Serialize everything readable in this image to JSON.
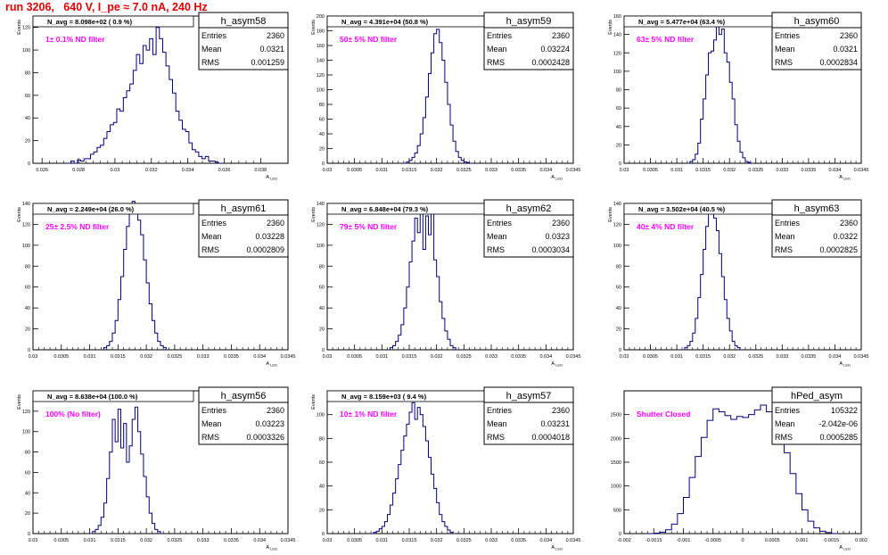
{
  "title": "run 3206,   640 V, I_pe ≈ 7.0 nA, 240 Hz",
  "colors": {
    "title": "#e00000",
    "histogram": "#00007a",
    "filter_label": "#ff00ff",
    "axes": "#000000",
    "background": "#ffffff"
  },
  "chart_data": [
    {
      "type": "bar",
      "name": "h_asym58",
      "stats": {
        "entries_label": "Entries",
        "entries": "2360",
        "mean_label": "Mean",
        "mean": "0.0321",
        "rms_label": "RMS",
        "rms": "0.001259"
      },
      "navg_label": "N_avg = 8.098e+02 ( 0.9 %)",
      "filter_label": "1± 0.1% ND filter",
      "xlabel": "A_LED",
      "ylabel": "Events",
      "xlim": [
        0.0255,
        0.0395
      ],
      "ylim": [
        0,
        130
      ],
      "xticks": [
        0.026,
        0.028,
        0.03,
        0.032,
        0.034,
        0.036,
        0.038
      ],
      "xtick_labels": [
        "0.026",
        "0.028",
        "0.03",
        "0.032",
        "0.034",
        "0.036",
        "0.038"
      ],
      "yticks": [
        0,
        20,
        40,
        60,
        80,
        100,
        120
      ],
      "ytick_labels": [
        "0",
        "20",
        "40",
        "60",
        "80",
        "100",
        "120"
      ],
      "bins": {
        "start": 0.0274,
        "width": 0.00018,
        "counts": [
          0,
          2,
          0,
          3,
          2,
          4,
          4,
          8,
          10,
          14,
          16,
          22,
          28,
          34,
          36,
          48,
          46,
          58,
          64,
          70,
          82,
          96,
          88,
          104,
          100,
          110,
          96,
          120,
          110,
          98,
          86,
          74,
          62,
          46,
          38,
          30,
          28,
          18,
          12,
          10,
          6,
          4,
          6,
          2,
          2,
          1,
          0
        ]
      }
    },
    {
      "type": "bar",
      "name": "h_asym59",
      "stats": {
        "entries_label": "Entries",
        "entries": "2360",
        "mean_label": "Mean",
        "mean": "0.03224",
        "rms_label": "RMS",
        "rms": "0.0002428"
      },
      "navg_label": "N_avg = 4.391e+04 (50.8 %)",
      "filter_label": "50± 5% ND filter",
      "xlabel": "A_LED",
      "ylabel": "Events",
      "xlim": [
        0.03,
        0.0345
      ],
      "ylim": [
        0,
        200
      ],
      "xticks": [
        0.03,
        0.0305,
        0.031,
        0.0315,
        0.032,
        0.0325,
        0.033,
        0.0335,
        0.034,
        0.0345
      ],
      "xtick_labels": [
        "0.03",
        "0.0305",
        "0.031",
        "0.0315",
        "0.032",
        "0.0325",
        "0.033",
        "0.0335",
        "0.034",
        "0.0345"
      ],
      "yticks": [
        0,
        20,
        40,
        60,
        80,
        100,
        120,
        140,
        160,
        180,
        200
      ],
      "ytick_labels": [
        "0",
        "20",
        "40",
        "60",
        "80",
        "100",
        "120",
        "140",
        "160",
        "180",
        "200"
      ],
      "bins": {
        "start": 0.0314,
        "width": 5e-05,
        "counts": [
          0,
          2,
          4,
          8,
          14,
          24,
          40,
          62,
          90,
          122,
          150,
          176,
          182,
          164,
          140,
          110,
          80,
          52,
          30,
          16,
          8,
          4,
          2,
          1,
          0
        ]
      }
    },
    {
      "type": "bar",
      "name": "h_asym60",
      "stats": {
        "entries_label": "Entries",
        "entries": "2360",
        "mean_label": "Mean",
        "mean": "0.0321",
        "rms_label": "RMS",
        "rms": "0.0002834"
      },
      "navg_label": "N_avg = 5.477e+04 (63.4 %)",
      "filter_label": "63± 5% ND filter",
      "xlabel": "A_LED",
      "ylabel": "Events",
      "xlim": [
        0.03,
        0.0345
      ],
      "ylim": [
        0,
        160
      ],
      "xticks": [
        0.03,
        0.0305,
        0.031,
        0.0315,
        0.032,
        0.0325,
        0.033,
        0.0335,
        0.034,
        0.0345
      ],
      "xtick_labels": [
        "0.03",
        "0.0305",
        "0.031",
        "0.0315",
        "0.032",
        "0.0325",
        "0.033",
        "0.0335",
        "0.034",
        "0.0345"
      ],
      "yticks": [
        0,
        20,
        40,
        60,
        80,
        100,
        120,
        140,
        160
      ],
      "ytick_labels": [
        "0",
        "20",
        "40",
        "60",
        "80",
        "100",
        "120",
        "140",
        "160"
      ],
      "bins": {
        "start": 0.0312,
        "width": 5e-05,
        "counts": [
          0,
          2,
          4,
          10,
          22,
          48,
          70,
          96,
          120,
          122,
          134,
          150,
          140,
          146,
          120,
          110,
          88,
          70,
          42,
          24,
          12,
          6,
          2,
          1,
          0
        ]
      }
    },
    {
      "type": "bar",
      "name": "h_asym61",
      "stats": {
        "entries_label": "Entries",
        "entries": "2360",
        "mean_label": "Mean",
        "mean": "0.03228",
        "rms_label": "RMS",
        "rms": "0.0002809"
      },
      "navg_label": "N_avg = 2.249e+04 (26.0 %)",
      "filter_label": "25± 2.5% ND filter",
      "xlabel": "A_LED",
      "ylabel": "Events",
      "xlim": [
        0.03,
        0.0345
      ],
      "ylim": [
        0,
        140
      ],
      "xticks": [
        0.03,
        0.0305,
        0.031,
        0.0315,
        0.032,
        0.0325,
        0.033,
        0.0335,
        0.034,
        0.0345
      ],
      "xtick_labels": [
        "0.03",
        "0.0305",
        "0.031",
        "0.0315",
        "0.032",
        "0.0325",
        "0.033",
        "0.0335",
        "0.034",
        "0.0345"
      ],
      "yticks": [
        0,
        20,
        40,
        60,
        80,
        100,
        120,
        140
      ],
      "ytick_labels": [
        "0",
        "20",
        "40",
        "60",
        "80",
        "100",
        "120",
        "140"
      ],
      "bins": {
        "start": 0.0312,
        "width": 5e-05,
        "counts": [
          0,
          2,
          4,
          8,
          16,
          28,
          48,
          70,
          96,
          118,
          130,
          142,
          136,
          124,
          110,
          86,
          64,
          44,
          28,
          16,
          8,
          4,
          2,
          0
        ]
      }
    },
    {
      "type": "bar",
      "name": "h_asym62",
      "stats": {
        "entries_label": "Entries",
        "entries": "2360",
        "mean_label": "Mean",
        "mean": "0.0323",
        "rms_label": "RMS",
        "rms": "0.0003034"
      },
      "navg_label": "N_avg = 6.848e+04 (79.3 %)",
      "filter_label": "79± 5% ND filter",
      "xlabel": "A_LED",
      "ylabel": "Events",
      "xlim": [
        0.03,
        0.0345
      ],
      "ylim": [
        0,
        140
      ],
      "xticks": [
        0.03,
        0.0305,
        0.031,
        0.0315,
        0.032,
        0.0325,
        0.033,
        0.0335,
        0.034,
        0.0345
      ],
      "xtick_labels": [
        "0.03",
        "0.0305",
        "0.031",
        "0.0315",
        "0.032",
        "0.0325",
        "0.033",
        "0.0335",
        "0.034",
        "0.0345"
      ],
      "yticks": [
        0,
        20,
        40,
        60,
        80,
        100,
        120,
        140
      ],
      "ytick_labels": [
        "0",
        "20",
        "40",
        "60",
        "80",
        "100",
        "120",
        "140"
      ],
      "bins": {
        "start": 0.0311,
        "width": 5e-05,
        "counts": [
          0,
          2,
          4,
          8,
          14,
          24,
          40,
          60,
          84,
          104,
          126,
          112,
          138,
          96,
          128,
          110,
          132,
          86,
          70,
          46,
          30,
          18,
          10,
          4,
          2,
          0
        ]
      }
    },
    {
      "type": "bar",
      "name": "h_asym63",
      "stats": {
        "entries_label": "Entries",
        "entries": "2360",
        "mean_label": "Mean",
        "mean": "0.0322",
        "rms_label": "RMS",
        "rms": "0.0002825"
      },
      "navg_label": "N_avg = 3.502e+04 (40.5 %)",
      "filter_label": "40± 4% ND filter",
      "xlabel": "A_LED",
      "ylabel": "Events",
      "xlim": [
        0.03,
        0.0345
      ],
      "ylim": [
        0,
        140
      ],
      "xticks": [
        0.03,
        0.0305,
        0.031,
        0.0315,
        0.032,
        0.0325,
        0.033,
        0.0335,
        0.034,
        0.0345
      ],
      "xtick_labels": [
        "0.03",
        "0.0305",
        "0.031",
        "0.0315",
        "0.032",
        "0.0325",
        "0.033",
        "0.0335",
        "0.034",
        "0.0345"
      ],
      "yticks": [
        0,
        20,
        40,
        60,
        80,
        100,
        120,
        140
      ],
      "ytick_labels": [
        "0",
        "20",
        "40",
        "60",
        "80",
        "100",
        "120",
        "140"
      ],
      "bins": {
        "start": 0.0311,
        "width": 5e-05,
        "counts": [
          0,
          2,
          4,
          8,
          16,
          30,
          50,
          72,
          96,
          118,
          132,
          140,
          126,
          114,
          92,
          70,
          48,
          30,
          18,
          8,
          4,
          2,
          0
        ]
      }
    },
    {
      "type": "bar",
      "name": "h_asym56",
      "stats": {
        "entries_label": "Entries",
        "entries": "2360",
        "mean_label": "Mean",
        "mean": "0.03223",
        "rms_label": "RMS",
        "rms": "0.0003326"
      },
      "navg_label": "N_avg = 8.638e+04 (100.0 %)",
      "filter_label": "100% (No filter)",
      "xlabel": "A_LED",
      "ylabel": "Events",
      "xlim": [
        0.03,
        0.0345
      ],
      "ylim": [
        0,
        140
      ],
      "xticks": [
        0.03,
        0.0305,
        0.031,
        0.0315,
        0.032,
        0.0325,
        0.033,
        0.0335,
        0.034,
        0.0345
      ],
      "xtick_labels": [
        "0.03",
        "0.0305",
        "0.031",
        "0.0315",
        "0.032",
        "0.0325",
        "0.033",
        "0.0335",
        "0.034",
        "0.0345"
      ],
      "yticks": [
        0,
        20,
        40,
        60,
        80,
        100,
        120
      ],
      "ytick_labels": [
        "0",
        "20",
        "40",
        "60",
        "80",
        "100",
        "120"
      ],
      "bins": {
        "start": 0.031,
        "width": 5e-05,
        "counts": [
          0,
          2,
          4,
          8,
          16,
          30,
          54,
          80,
          112,
          90,
          122,
          84,
          108,
          70,
          86,
          112,
          124,
          100,
          78,
          56,
          36,
          20,
          10,
          4,
          2,
          0
        ]
      }
    },
    {
      "type": "bar",
      "name": "h_asym57",
      "stats": {
        "entries_label": "Entries",
        "entries": "2360",
        "mean_label": "Mean",
        "mean": "0.03231",
        "rms_label": "RMS",
        "rms": "0.0004018"
      },
      "navg_label": "N_avg = 8.159e+03 ( 9.4 %)",
      "filter_label": "10± 1% ND filter",
      "xlabel": "A_LED",
      "ylabel": "Events",
      "xlim": [
        0.03,
        0.0345
      ],
      "ylim": [
        0,
        120
      ],
      "xticks": [
        0.03,
        0.0305,
        0.031,
        0.0315,
        0.032,
        0.0325,
        0.033,
        0.0335,
        0.034,
        0.0345
      ],
      "xtick_labels": [
        "0.03",
        "0.0305",
        "0.031",
        "0.0315",
        "0.032",
        "0.0325",
        "0.033",
        "0.0335",
        "0.034",
        "0.0345"
      ],
      "yticks": [
        0,
        20,
        40,
        60,
        80,
        100
      ],
      "ytick_labels": [
        "0",
        "20",
        "40",
        "60",
        "80",
        "100"
      ],
      "bins": {
        "start": 0.0308,
        "width": 5e-05,
        "counts": [
          0,
          1,
          2,
          4,
          6,
          10,
          16,
          24,
          34,
          46,
          58,
          70,
          82,
          92,
          102,
          110,
          96,
          106,
          100,
          90,
          78,
          64,
          50,
          38,
          26,
          16,
          10,
          6,
          3,
          1,
          0
        ]
      }
    },
    {
      "type": "bar",
      "name": "hPed_asym",
      "stats": {
        "entries_label": "Entries",
        "entries": "105322",
        "mean_label": "Mean",
        "mean": "-2.042e-06",
        "rms_label": "RMS",
        "rms": "0.0005285"
      },
      "navg_label": "",
      "filter_label": "Shutter Closed",
      "xlabel": "A_LED",
      "ylabel": "",
      "xlim": [
        -0.002,
        0.002
      ],
      "ylim": [
        0,
        3000
      ],
      "xticks": [
        -0.002,
        -0.0015,
        -0.001,
        -0.0005,
        0,
        0.0005,
        0.001,
        0.0015,
        0.002
      ],
      "xtick_labels": [
        "-0.002",
        "-0.0015",
        "-0.001",
        "-0.0005",
        "0",
        "0.0005",
        "0.001",
        "0.0015",
        "0.002"
      ],
      "yticks": [
        0,
        500,
        1000,
        1500,
        2000,
        2500
      ],
      "ytick_labels": [
        "0",
        "500",
        "1000",
        "1500",
        "2000",
        "2500"
      ],
      "bins": {
        "start": -0.0016,
        "width": 0.0001,
        "counts": [
          0,
          10,
          30,
          80,
          200,
          420,
          760,
          1180,
          1620,
          2020,
          2380,
          2620,
          2560,
          2480,
          2400,
          2460,
          2440,
          2500,
          2600,
          2700,
          2560,
          2380,
          2100,
          1700,
          1260,
          840,
          500,
          260,
          120,
          50,
          20,
          0
        ]
      }
    }
  ]
}
